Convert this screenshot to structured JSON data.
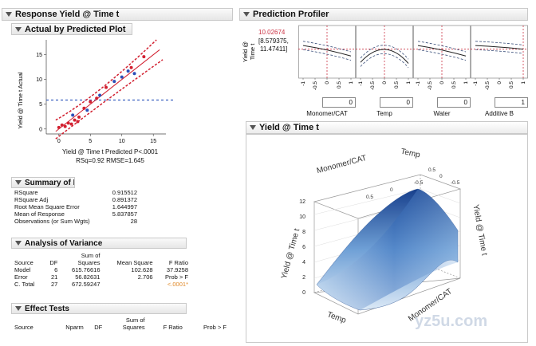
{
  "response_panel": {
    "title": "Response Yield @ Time t"
  },
  "actual_vs_predicted": {
    "title": "Actual by Predicted Plot",
    "y_label": "Yield @ Time t Actual",
    "x_label": "Yield @ Time t Predicted P<.0001",
    "stats_label": "RSq=0.92 RMSE=1.645",
    "chart_data": {
      "type": "scatter",
      "x_ticks": [
        "0",
        "5",
        "10",
        "15"
      ],
      "y_ticks": [
        "0",
        "5",
        "10",
        "15"
      ],
      "xlim": [
        -2,
        17
      ],
      "ylim": [
        -1,
        18
      ],
      "mean_line_y": 5.84,
      "red_points": [
        [
          0,
          0.3
        ],
        [
          0.5,
          0.8
        ],
        [
          1,
          0.5
        ],
        [
          1.5,
          1.2
        ],
        [
          2,
          1.0
        ],
        [
          2.5,
          1.8
        ],
        [
          3,
          1.5
        ],
        [
          4,
          4.2
        ],
        [
          5,
          5.5
        ],
        [
          6,
          6.2
        ],
        [
          7.5,
          8.4
        ],
        [
          11.5,
          12.4
        ],
        [
          13.5,
          14.6
        ],
        [
          3.2,
          2.4
        ]
      ],
      "blue_points": [
        [
          2.2,
          2.8
        ],
        [
          4.5,
          3.8
        ],
        [
          6.5,
          6.8
        ],
        [
          8.8,
          9.6
        ],
        [
          10,
          10.5
        ],
        [
          11,
          11.7
        ],
        [
          12,
          11.2
        ]
      ],
      "fit": [
        [
          -0.5,
          -0.5
        ],
        [
          16,
          16
        ]
      ]
    }
  },
  "summary_of_fit": {
    "title": "Summary of Fit",
    "rows": [
      {
        "label": "RSquare",
        "value": "0.915512"
      },
      {
        "label": "RSquare Adj",
        "value": "0.891372"
      },
      {
        "label": "Root Mean Square Error",
        "value": "1.644997"
      },
      {
        "label": "Mean of Response",
        "value": "5.837857"
      },
      {
        "label": "Observations (or Sum Wgts)",
        "value": "28"
      }
    ]
  },
  "anova": {
    "title": "Analysis of Variance",
    "header_top": "Sum of",
    "headers": [
      "Source",
      "DF",
      "Squares",
      "Mean Square",
      "F Ratio"
    ],
    "rows": [
      [
        "Model",
        "6",
        "615.76616",
        "102.628",
        "37.9258"
      ],
      [
        "Error",
        "21",
        "56.82631",
        "2.706",
        "Prob > F"
      ],
      [
        "C. Total",
        "27",
        "672.59247",
        "",
        "<.0001*"
      ]
    ]
  },
  "effect_tests": {
    "title": "Effect Tests",
    "header_top": "Sum of",
    "headers": [
      "Source",
      "Nparm",
      "DF",
      "Squares",
      "F Ratio",
      "Prob > F"
    ]
  },
  "prediction_profiler": {
    "title": "Prediction Profiler",
    "y_label_a": "Yield @",
    "y_label_b": "Time t",
    "current_value": "10.02674",
    "interval": "[8.579375,",
    "interval_b": "11.47411]",
    "panels": [
      {
        "factor": "Monomer/CAT",
        "value": "0",
        "curve": [
          [
            -1,
            0.62
          ],
          [
            0,
            0.55
          ],
          [
            1,
            0.42
          ]
        ]
      },
      {
        "factor": "Temp",
        "value": "0",
        "curve": [
          [
            -1,
            0.3
          ],
          [
            0,
            0.62
          ],
          [
            1,
            0.28
          ]
        ]
      },
      {
        "factor": "Water",
        "value": "0",
        "curve": [
          [
            -1,
            0.62
          ],
          [
            0,
            0.55
          ],
          [
            1,
            0.42
          ]
        ]
      },
      {
        "factor": "Additive B",
        "value": "1",
        "curve": [
          [
            -1,
            0.62
          ],
          [
            0,
            0.6
          ],
          [
            1,
            0.55
          ]
        ]
      }
    ],
    "x_ticks": [
      "-1",
      "-0.5",
      "0",
      "0.5",
      "1"
    ]
  },
  "surface_plot": {
    "title": "Yield @ Time t",
    "z_label": "Yield @ Time t",
    "z_label_right": "Yield @ Time t",
    "axis_a": "Monomer/CAT",
    "axis_b": "Temp",
    "axis_a_bottom": "Monomer/CAT",
    "axis_b_bottom": "Temp",
    "z_ticks": [
      "0",
      "2",
      "4",
      "6",
      "8",
      "10",
      "12"
    ],
    "top_ticks_a": [
      "0.5",
      "0",
      "-0.5"
    ],
    "top_ticks_b": [
      "0.5",
      "0",
      "-0.5"
    ]
  },
  "watermark": "yz5u.com",
  "colors": {
    "red": "#d22030",
    "blue": "#2b4fb8",
    "mean_line": "#3b5fc0",
    "profiler_red": "#cc3344"
  }
}
